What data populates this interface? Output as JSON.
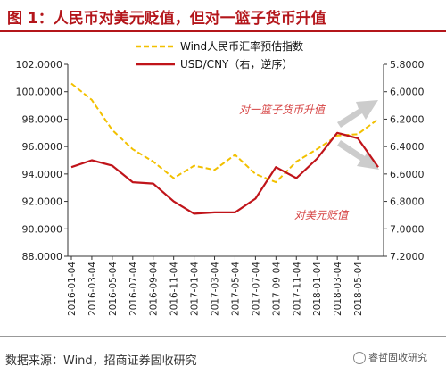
{
  "header": {
    "title": "图 1：人民币对美元贬值，但对一篮子货币升值"
  },
  "footer": {
    "source": "数据来源：Wind，招商证券固收研究",
    "watermark": "睿哲固收研究"
  },
  "colors": {
    "accent": "#b4161b",
    "basket_series": "#f2c000",
    "usd_series": "#c0141a",
    "arrow": "#cccccc"
  },
  "chart_data": {
    "type": "line",
    "title": "",
    "xlabel": "",
    "ylabel_left": "",
    "ylabel_right": "",
    "x": [
      "2016-01-04",
      "2016-03-04",
      "2016-05-04",
      "2016-07-04",
      "2016-09-04",
      "2016-11-04",
      "2017-01-04",
      "2017-03-04",
      "2017-05-04",
      "2017-07-04",
      "2017-09-04",
      "2017-11-04",
      "2018-01-04",
      "2018-03-04",
      "2018-05-04",
      "2018-07-04"
    ],
    "x_tick_labels": [
      "2016-01-04",
      "2016-03-04",
      "2016-05-04",
      "2016-07-04",
      "2016-09-04",
      "2016-11-04",
      "2017-01-04",
      "2017-03-04",
      "2017-05-04",
      "2017-07-04",
      "2017-09-04",
      "2017-11-04",
      "2018-01-04",
      "2018-03-04",
      "2018-05-04"
    ],
    "y_left": {
      "ylim": [
        88,
        102
      ],
      "ticks": [
        "88.0000",
        "90.0000",
        "92.0000",
        "94.0000",
        "96.0000",
        "98.0000",
        "100.0000",
        "102.0000"
      ]
    },
    "y_right": {
      "ylim": [
        7.2,
        5.8
      ],
      "inverted": true,
      "ticks": [
        "5.8000",
        "6.0000",
        "6.2000",
        "6.4000",
        "6.6000",
        "6.8000",
        "7.0000",
        "7.2000"
      ]
    },
    "grid": false,
    "legend": {
      "position": "top-center"
    },
    "series": [
      {
        "name": "Wind人民币汇率预估指数",
        "axis": "left",
        "style": "dashed",
        "values": [
          100.6,
          99.4,
          97.2,
          95.8,
          94.9,
          93.7,
          94.6,
          94.3,
          95.4,
          94.0,
          93.4,
          94.9,
          95.8,
          96.8,
          96.9,
          98.0
        ]
      },
      {
        "name": "USD/CNY（右，逆序）",
        "axis": "right",
        "style": "solid",
        "values": [
          6.55,
          6.5,
          6.54,
          6.66,
          6.67,
          6.8,
          6.89,
          6.88,
          6.88,
          6.78,
          6.55,
          6.63,
          6.49,
          6.3,
          6.34,
          6.55
        ]
      }
    ],
    "annotations": [
      {
        "text": "对一篮子货币升值"
      },
      {
        "text": "对美元贬值"
      }
    ]
  }
}
